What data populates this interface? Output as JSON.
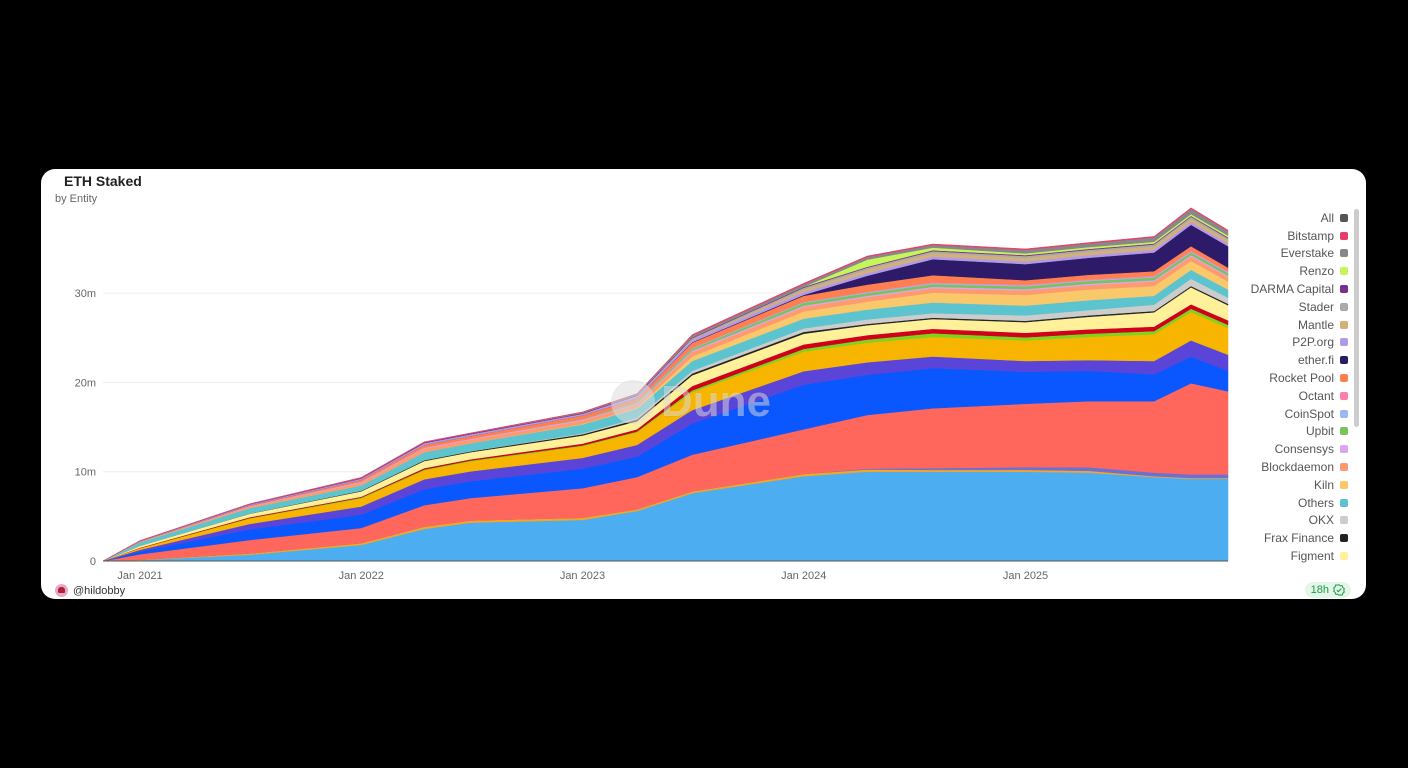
{
  "chart_data": {
    "type": "area",
    "stacked": true,
    "title": "ETH Staked",
    "subtitle": "by Entity",
    "y_ticks": [
      "0",
      "10m",
      "20m",
      "30m"
    ],
    "y_tick_values": [
      0,
      10,
      20,
      30
    ],
    "ylim": [
      0,
      40
    ],
    "y_unit": "millions ETH",
    "x_ticks": [
      "Jan 2021",
      "Jan 2022",
      "Jan 2023",
      "Jan 2024",
      "Jan 2025"
    ],
    "x_tick_dates": [
      "2021-01-01",
      "2022-01-01",
      "2023-01-01",
      "2024-01-01",
      "2025-01-01"
    ],
    "xlim": [
      "2020-11-01",
      "2025-12-01"
    ],
    "grid": true,
    "legend_position": "right",
    "x": [
      "2020-11-01",
      "2021-01-01",
      "2021-07-01",
      "2022-01-01",
      "2022-04-15",
      "2022-07-01",
      "2023-01-01",
      "2023-04-01",
      "2023-07-01",
      "2024-01-01",
      "2024-04-15",
      "2024-08-01",
      "2025-01-01",
      "2025-04-15",
      "2025-08-01",
      "2025-10-01",
      "2025-12-01"
    ],
    "series": [
      {
        "color": "#4caef0",
        "values": [
          0,
          0.1,
          0.7,
          1.8,
          3.6,
          4.3,
          4.6,
          5.6,
          7.6,
          9.5,
          10,
          10,
          10,
          9.9,
          9.4,
          9.2,
          9.2
        ]
      },
      {
        "color": "#f5a623",
        "values": [
          0,
          0.05,
          0.15,
          0.2,
          0.25,
          0.25,
          0.25,
          0.2,
          0.2,
          0.25,
          0.25,
          0.2,
          0.2,
          0.2,
          0.1,
          0.1,
          0.1
        ]
      },
      {
        "color": "#6c6fd6",
        "values": [
          0,
          0,
          0,
          0,
          0,
          0,
          0,
          0,
          0,
          0,
          0.1,
          0.2,
          0.3,
          0.4,
          0.4,
          0.4,
          0.4
        ]
      },
      {
        "color": "#ff675c",
        "values": [
          0,
          0.6,
          1.5,
          1.7,
          2.4,
          2.5,
          3.3,
          3.6,
          4.1,
          5,
          6,
          6.7,
          7.1,
          7.4,
          8,
          10.2,
          9.3
        ]
      },
      {
        "color": "#0a57ff",
        "values": [
          0,
          0.3,
          1.2,
          1.5,
          1.8,
          1.9,
          2.2,
          2.3,
          3.5,
          5,
          4.5,
          4.5,
          3.6,
          3.4,
          3.0,
          3.0,
          2.3
        ]
      },
      {
        "color": "#5b45d8",
        "values": [
          0,
          0.2,
          0.6,
          0.9,
          1.1,
          1.1,
          1.2,
          1.3,
          1.5,
          1.5,
          1.4,
          1.3,
          1.2,
          1.2,
          1.5,
          1.8,
          1.8
        ]
      },
      {
        "color": "#f7b500",
        "values": [
          0,
          0.2,
          0.6,
          0.9,
          1.0,
          1.1,
          1.3,
          1.4,
          2.0,
          2.2,
          2.2,
          2.2,
          2.3,
          2.6,
          3.0,
          3.2,
          3.0
        ]
      },
      {
        "color": "#7ed321",
        "values": [
          0,
          0,
          0.05,
          0.1,
          0.1,
          0.1,
          0.1,
          0.1,
          0.2,
          0.3,
          0.35,
          0.4,
          0.35,
          0.35,
          0.35,
          0.35,
          0.35
        ]
      },
      {
        "color": "#d0021b",
        "values": [
          0,
          0.05,
          0.1,
          0.1,
          0.15,
          0.15,
          0.2,
          0.25,
          0.5,
          0.5,
          0.5,
          0.5,
          0.5,
          0.5,
          0.5,
          0.5,
          0.5
        ]
      },
      {
        "name": "Figment",
        "color": "#fff09a",
        "values": [
          0,
          0.2,
          0.4,
          0.6,
          0.8,
          0.8,
          0.9,
          0.9,
          1.2,
          1.2,
          1.1,
          1.1,
          1.2,
          1.4,
          1.6,
          1.9,
          1.7
        ]
      },
      {
        "name": "Frax Finance",
        "color": "#222222",
        "values": [
          0,
          0,
          0.03,
          0.08,
          0.1,
          0.1,
          0.15,
          0.2,
          0.2,
          0.2,
          0.15,
          0.15,
          0.15,
          0.15,
          0.15,
          0.15,
          0.15
        ]
      },
      {
        "name": "OKX",
        "color": "#cccccc",
        "values": [
          0,
          0,
          0,
          0,
          0,
          0,
          0.1,
          0.2,
          0.3,
          0.4,
          0.5,
          0.5,
          0.6,
          0.6,
          0.7,
          0.8,
          0.7
        ]
      },
      {
        "name": "Others",
        "color": "#5bc4cf",
        "values": [
          0,
          0.4,
          0.6,
          0.6,
          0.9,
          0.9,
          1.0,
          1.0,
          1.1,
          1.1,
          1.1,
          1.2,
          1.1,
          1.1,
          1.0,
          1.0,
          0.9
        ]
      },
      {
        "name": "Kiln",
        "color": "#f8c86a",
        "values": [
          0,
          0,
          0,
          0,
          0,
          0,
          0.05,
          0.1,
          0.5,
          0.8,
          0.9,
          1.1,
          1.2,
          1.2,
          1.1,
          1.0,
          0.9
        ]
      },
      {
        "name": "Blockdaemon",
        "color": "#ff9a6e",
        "values": [
          0,
          0.1,
          0.2,
          0.3,
          0.4,
          0.4,
          0.4,
          0.4,
          0.5,
          0.5,
          0.5,
          0.5,
          0.5,
          0.5,
          0.5,
          0.5,
          0.5
        ]
      },
      {
        "name": "Consensys",
        "color": "#d9a6f2",
        "values": [
          0,
          0,
          0.05,
          0.1,
          0.1,
          0.1,
          0.1,
          0.1,
          0.15,
          0.15,
          0.15,
          0.15,
          0.15,
          0.15,
          0.15,
          0.15,
          0.15
        ]
      },
      {
        "name": "Upbit",
        "color": "#7bc25a",
        "values": [
          0,
          0,
          0,
          0,
          0,
          0,
          0.05,
          0.1,
          0.2,
          0.3,
          0.3,
          0.3,
          0.3,
          0.3,
          0.3,
          0.3,
          0.3
        ]
      },
      {
        "name": "CoinSpot",
        "color": "#9ab8f5",
        "values": [
          0,
          0,
          0,
          0,
          0,
          0,
          0,
          0.05,
          0.1,
          0.1,
          0.1,
          0.1,
          0.1,
          0.1,
          0.1,
          0.1,
          0.1
        ]
      },
      {
        "name": "Octant",
        "color": "#ff7fa8",
        "values": [
          0,
          0,
          0,
          0,
          0,
          0,
          0,
          0,
          0,
          0,
          0.05,
          0.1,
          0.1,
          0.1,
          0.1,
          0.1,
          0.1
        ]
      },
      {
        "name": "Rocket Pool",
        "color": "#ff7f50",
        "values": [
          0,
          0,
          0.05,
          0.2,
          0.3,
          0.3,
          0.4,
          0.4,
          0.6,
          0.7,
          0.8,
          0.8,
          0.5,
          0.5,
          0.5,
          0.5,
          0.4
        ]
      },
      {
        "name": "ether.fi",
        "color": "#2d1b69",
        "values": [
          0,
          0,
          0,
          0,
          0,
          0,
          0,
          0,
          0.05,
          0.1,
          1.0,
          1.8,
          1.8,
          1.9,
          2.1,
          2.4,
          2.4
        ]
      },
      {
        "name": "P2P.org",
        "color": "#b39ae8",
        "values": [
          0,
          0.05,
          0.1,
          0.15,
          0.2,
          0.2,
          0.2,
          0.25,
          0.3,
          0.3,
          0.3,
          0.3,
          0.3,
          0.3,
          0.3,
          0.3,
          0.3
        ]
      },
      {
        "name": "Mantle",
        "color": "#d2b07c",
        "values": [
          0,
          0,
          0,
          0,
          0,
          0,
          0,
          0,
          0.05,
          0.3,
          0.4,
          0.4,
          0.4,
          0.4,
          0.4,
          0.4,
          0.4
        ]
      },
      {
        "name": "Stader",
        "color": "#aaaaaa",
        "values": [
          0,
          0,
          0,
          0,
          0,
          0,
          0,
          0.05,
          0.1,
          0.2,
          0.2,
          0.2,
          0.2,
          0.2,
          0.2,
          0.2,
          0.2
        ]
      },
      {
        "name": "DARMA Capital",
        "color": "#7a2e8e",
        "values": [
          0,
          0.02,
          0.05,
          0.08,
          0.1,
          0.1,
          0.1,
          0.1,
          0.1,
          0.1,
          0.1,
          0.1,
          0.1,
          0.1,
          0.1,
          0.1,
          0.1
        ]
      },
      {
        "name": "Renzo",
        "color": "#c5f55a",
        "values": [
          0,
          0,
          0,
          0,
          0,
          0,
          0,
          0,
          0,
          0,
          0.8,
          0.3,
          0.2,
          0.2,
          0.2,
          0.2,
          0.2
        ]
      },
      {
        "name": "Everstake",
        "color": "#888888",
        "values": [
          0,
          0,
          0,
          0,
          0,
          0,
          0.05,
          0.1,
          0.2,
          0.3,
          0.3,
          0.3,
          0.4,
          0.4,
          0.5,
          0.6,
          0.5
        ]
      },
      {
        "name": "Bitstamp",
        "color": "#e83e6c",
        "values": [
          0,
          0.02,
          0.03,
          0.05,
          0.05,
          0.05,
          0.05,
          0.05,
          0.1,
          0.1,
          0.1,
          0.1,
          0.1,
          0.1,
          0.1,
          0.1,
          0.1
        ]
      }
    ],
    "legend": [
      {
        "label": "All",
        "color": "#555555"
      },
      {
        "label": "Bitstamp",
        "color": "#e83e6c"
      },
      {
        "label": "Everstake",
        "color": "#888888"
      },
      {
        "label": "Renzo",
        "color": "#c5f55a"
      },
      {
        "label": "DARMA Capital",
        "color": "#7a2e8e"
      },
      {
        "label": "Stader",
        "color": "#aaaaaa"
      },
      {
        "label": "Mantle",
        "color": "#d2b07c"
      },
      {
        "label": "P2P.org",
        "color": "#b39ae8"
      },
      {
        "label": "ether.fi",
        "color": "#2d1b69"
      },
      {
        "label": "Rocket Pool",
        "color": "#ff7f50"
      },
      {
        "label": "Octant",
        "color": "#ff7fa8"
      },
      {
        "label": "CoinSpot",
        "color": "#9ab8f5"
      },
      {
        "label": "Upbit",
        "color": "#7bc25a"
      },
      {
        "label": "Consensys",
        "color": "#d9a6f2"
      },
      {
        "label": "Blockdaemon",
        "color": "#ff9a6e"
      },
      {
        "label": "Kiln",
        "color": "#f8c86a"
      },
      {
        "label": "Others",
        "color": "#5bc4cf"
      },
      {
        "label": "OKX",
        "color": "#cccccc"
      },
      {
        "label": "Frax Finance",
        "color": "#222222"
      },
      {
        "label": "Figment",
        "color": "#fff09a"
      }
    ]
  },
  "watermark": "Dune",
  "footer": {
    "author": "@hildobby",
    "freshness": "18h",
    "freshness_icon": "check-badge-icon"
  }
}
